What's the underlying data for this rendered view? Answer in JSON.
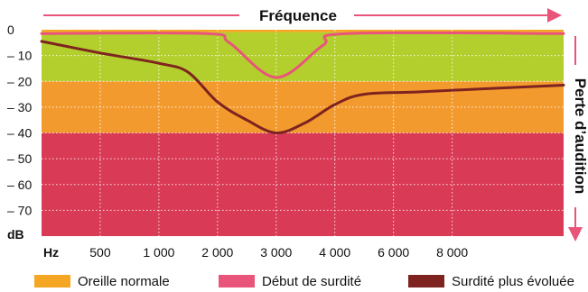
{
  "chart_data": {
    "type": "area",
    "x_axis_title": "Fréquence",
    "y_axis_title": "Perte d’audition",
    "x_unit_label": "Hz",
    "y_unit_label": "dB",
    "x_ticks": [
      "500",
      "1 000",
      "2 000",
      "3 000",
      "4 000",
      "6 000",
      "8 000"
    ],
    "y_ticks": [
      "0",
      "– 10",
      "– 20",
      "– 30",
      "– 40",
      "– 50",
      "– 60",
      "– 70"
    ],
    "ylim": [
      -80,
      0
    ],
    "grid": true,
    "bands": [
      {
        "name": "Oreille normale",
        "from": 0,
        "to": -1,
        "color": "#f5a623"
      },
      {
        "name": "",
        "from": -1,
        "to": -20,
        "color": "#b3cf2e"
      },
      {
        "name": "",
        "from": -20,
        "to": -40,
        "color": "#f39a2e"
      },
      {
        "name": "",
        "from": -40,
        "to": -80,
        "color": "#d93a55"
      }
    ],
    "series": [
      {
        "name": "Début de surdité",
        "color": "#e9557a",
        "points": [
          [
            0,
            -1.5
          ],
          [
            2.8,
            -1.5
          ],
          [
            3.2,
            -5
          ],
          [
            4.0,
            -18.5
          ],
          [
            4.8,
            -6
          ],
          [
            5.2,
            -1.5
          ],
          [
            8.9,
            -1.5
          ]
        ]
      },
      {
        "name": "Surdité plus évoluée",
        "color": "#7e2320",
        "points": [
          [
            0,
            -4.5
          ],
          [
            1.0,
            -9
          ],
          [
            2.0,
            -13
          ],
          [
            2.5,
            -16.5
          ],
          [
            3.0,
            -28
          ],
          [
            3.5,
            -35
          ],
          [
            4.0,
            -40
          ],
          [
            4.5,
            -36
          ],
          [
            5.0,
            -29
          ],
          [
            5.5,
            -25
          ],
          [
            6.5,
            -24
          ],
          [
            8.9,
            -21.5
          ]
        ]
      }
    ],
    "legend": [
      {
        "label": "Oreille normale",
        "color": "#f5a623"
      },
      {
        "label": "Début de surdité",
        "color": "#e9557a"
      },
      {
        "label": "Surdité plus évoluée",
        "color": "#7e2320"
      }
    ],
    "arrow_color": "#e9557a"
  }
}
